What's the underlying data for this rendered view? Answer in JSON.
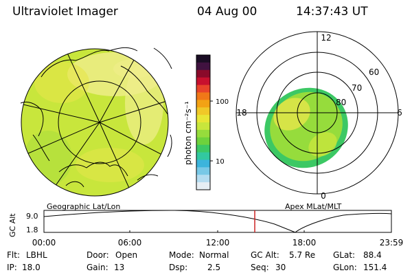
{
  "header": {
    "instrument": "Ultraviolet Imager",
    "date": "04 Aug 00",
    "time": "14:37:43 UT"
  },
  "colorbar": {
    "unit_label": "photon cm⁻²s⁻¹",
    "ticks": [
      "100",
      "10"
    ],
    "colors": [
      "#1a0d24",
      "#401240",
      "#8a0a2a",
      "#c8102e",
      "#e8442a",
      "#f07818",
      "#f3a214",
      "#f0c828",
      "#e8e636",
      "#c8e63c",
      "#96dc3c",
      "#6ed23c",
      "#3cc864",
      "#32c8a0",
      "#3cb4dc",
      "#78c8e6",
      "#b4dcf0",
      "#e6eef4"
    ]
  },
  "left_panel": {
    "label": "Geographic Lat/Lon",
    "fill_colors": [
      "#c8e63c",
      "#e6e64a",
      "#a6dc3c",
      "#f0ee8c"
    ]
  },
  "right_panel": {
    "label": "Apex MLat/MLT",
    "mlt_labels": {
      "top": "12",
      "left": "18",
      "right": "6",
      "bottom": "0"
    },
    "lat_labels": [
      "60",
      "70",
      "80"
    ]
  },
  "timeline": {
    "y_label": "GC Alt",
    "y_ticks": [
      "9.0",
      "1.8"
    ],
    "x_ticks": [
      "00:00",
      "06:00",
      "12:00",
      "18:00",
      "23:59"
    ],
    "marker_color": "#cc2222"
  },
  "info": {
    "row1": [
      {
        "key": "Flt:",
        "val": "LBHL"
      },
      {
        "key": "Door:",
        "val": "Open"
      },
      {
        "key": "Mode:",
        "val": "Normal"
      },
      {
        "key": "GC Alt:",
        "val": "5.7 Re"
      },
      {
        "key": "GLat:",
        "val": "88.4"
      }
    ],
    "row2": [
      {
        "key": "IP:",
        "val": "18.0"
      },
      {
        "key": "Gain:",
        "val": "13"
      },
      {
        "key": "Dsp:",
        "val": "2.5"
      },
      {
        "key": "Seq:",
        "val": "30"
      },
      {
        "key": "GLon:",
        "val": "151.4"
      }
    ]
  }
}
